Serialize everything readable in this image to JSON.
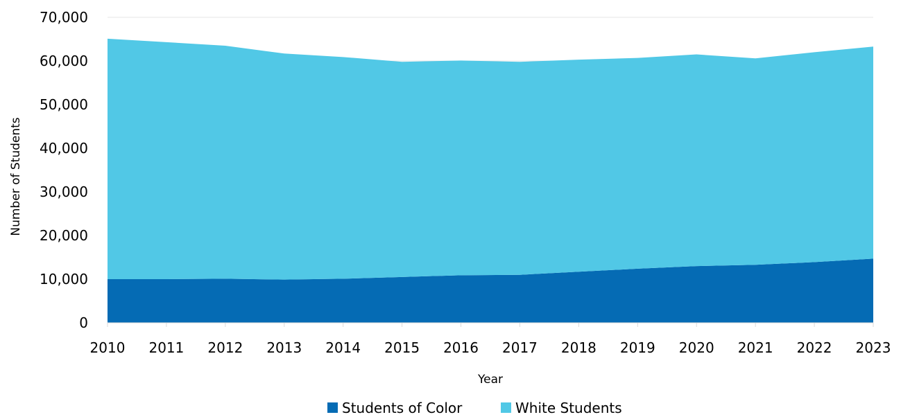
{
  "chart_data": {
    "type": "area",
    "stacked": true,
    "title": "",
    "xlabel": "Year",
    "ylabel": "Number of Students",
    "x": [
      "2010",
      "2011",
      "2012",
      "2013",
      "2014",
      "2015",
      "2016",
      "2017",
      "2018",
      "2019",
      "2020",
      "2021",
      "2022",
      "2023"
    ],
    "ylim": [
      0,
      70000
    ],
    "yticks": [
      "0",
      "10,000",
      "20,000",
      "30,000",
      "40,000",
      "50,000",
      "60,000",
      "70,000"
    ],
    "grid": true,
    "legend_position": "bottom",
    "series": [
      {
        "name": "Students of Color",
        "color": "#056BB4",
        "values": [
          10000,
          10000,
          10100,
          9900,
          10100,
          10500,
          10900,
          11000,
          11700,
          12400,
          13000,
          13300,
          13900,
          14700
        ]
      },
      {
        "name": "White Students",
        "color": "#51C8E6",
        "values": [
          55100,
          54300,
          53400,
          51800,
          50800,
          49300,
          49200,
          48800,
          48600,
          48300,
          48500,
          47300,
          48100,
          48600
        ]
      }
    ]
  }
}
